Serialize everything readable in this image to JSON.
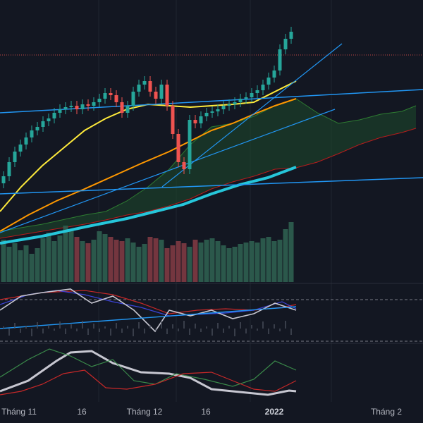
{
  "chart_data": {
    "type": "line",
    "axis_labels": [
      "Tháng 11",
      "16",
      "Tháng 12",
      "16",
      "2022",
      "Tháng 2"
    ],
    "axis_labels_bold": [
      false,
      false,
      false,
      false,
      true,
      false
    ],
    "colors": {
      "background": "#131722",
      "grid": "#1f2430",
      "up": "#26a69a",
      "down": "#ef5350",
      "bar_up": "#2f5f50",
      "bar_down": "#7f3a42",
      "ma_fast": "#ffeb3b",
      "ma_mid": "#ff9800",
      "ma_slow": "#26c6da",
      "trendline": "#2196f3",
      "cloud_up": "#1e4b2c",
      "cloud_down": "#4a1e24",
      "osc_main": "#c7c7d1",
      "osc_signal": "#3b43d6",
      "osc_red": "#c62828",
      "osc_green": "#3a8a4a"
    }
  }
}
